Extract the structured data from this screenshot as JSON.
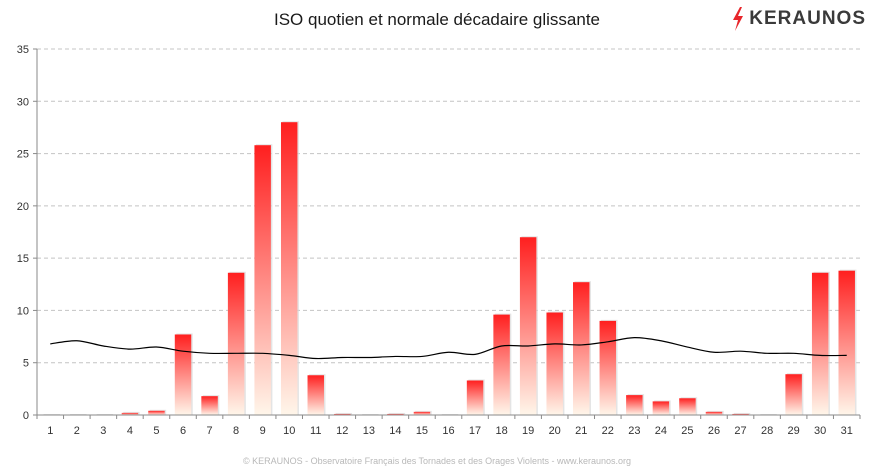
{
  "chart_data": {
    "type": "bar",
    "title": "ISO quotien et normale décadaire glissante",
    "categories": [
      "1",
      "2",
      "3",
      "4",
      "5",
      "6",
      "7",
      "8",
      "9",
      "10",
      "11",
      "12",
      "13",
      "14",
      "15",
      "16",
      "17",
      "18",
      "19",
      "20",
      "21",
      "22",
      "23",
      "24",
      "25",
      "26",
      "27",
      "28",
      "29",
      "30",
      "31"
    ],
    "series": [
      {
        "type": "bar",
        "values": [
          0,
          0,
          0,
          0.2,
          0.4,
          7.7,
          1.8,
          13.6,
          25.8,
          28.0,
          3.8,
          0.1,
          0,
          0.1,
          0.3,
          0,
          3.3,
          9.6,
          17.0,
          9.8,
          12.7,
          9.0,
          1.9,
          1.3,
          1.6,
          0.3,
          0.1,
          0,
          3.9,
          13.6,
          13.8
        ],
        "color": "#ff2a2a"
      },
      {
        "type": "line",
        "values": [
          6.8,
          7.1,
          6.6,
          6.3,
          6.5,
          6.1,
          5.9,
          5.9,
          5.9,
          5.7,
          5.4,
          5.5,
          5.5,
          5.6,
          5.6,
          6.0,
          5.8,
          6.6,
          6.6,
          6.8,
          6.7,
          7.0,
          7.4,
          7.1,
          6.5,
          6.0,
          6.1,
          5.9,
          5.9,
          5.7,
          5.7
        ],
        "color": "#000000"
      }
    ],
    "ylim": [
      0,
      35
    ],
    "yticks": [
      0,
      5,
      10,
      15,
      20,
      25,
      30,
      35
    ],
    "grid": true,
    "legend": "none"
  },
  "branding": {
    "logo_text": "KERAUNOS",
    "footer": "© KERAUNOS - Observatoire Français des Tornades et des Orages Violents - www.keraunos.org",
    "accent_color": "#e8262b",
    "logo_icon": "lightning-bolt-icon"
  }
}
